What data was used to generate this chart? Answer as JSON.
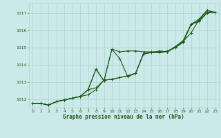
{
  "xlabel": "Graphe pression niveau de la mer (hPa)",
  "xlim": [
    -0.5,
    23.5
  ],
  "ylim": [
    1011.5,
    1017.6
  ],
  "yticks": [
    1012,
    1013,
    1014,
    1015,
    1016,
    1017
  ],
  "xticks": [
    0,
    1,
    2,
    3,
    4,
    5,
    6,
    7,
    8,
    9,
    10,
    11,
    12,
    13,
    14,
    15,
    16,
    17,
    18,
    19,
    20,
    21,
    22,
    23
  ],
  "bg_color": "#cce9e9",
  "grid_color": "#b0d0d0",
  "line_color": "#1a5c1a",
  "line1": [
    1011.75,
    1011.75,
    1011.65,
    1011.85,
    1011.95,
    1012.05,
    1012.15,
    1012.25,
    1012.55,
    1013.1,
    1013.15,
    1013.25,
    1013.35,
    1013.5,
    1014.65,
    1014.7,
    1014.7,
    1014.75,
    1015.0,
    1015.3,
    1016.35,
    1016.5,
    1017.0,
    1017.05
  ],
  "line2": [
    1011.75,
    1011.75,
    1011.65,
    1011.85,
    1011.95,
    1012.05,
    1012.15,
    1012.55,
    1012.65,
    1013.1,
    1013.15,
    1013.25,
    1013.35,
    1013.5,
    1014.65,
    1014.7,
    1014.7,
    1014.8,
    1015.0,
    1015.3,
    1016.35,
    1016.55,
    1017.05,
    1017.05
  ],
  "line3": [
    1011.75,
    1011.75,
    1011.65,
    1011.85,
    1011.95,
    1012.05,
    1012.15,
    1012.55,
    1013.75,
    1013.05,
    1014.9,
    1014.75,
    1014.8,
    1014.8,
    1014.75,
    1014.75,
    1014.75,
    1014.75,
    1015.05,
    1015.35,
    1015.85,
    1016.6,
    1017.15,
    1017.05
  ],
  "line4": [
    1011.75,
    1011.75,
    1011.65,
    1011.85,
    1011.95,
    1012.05,
    1012.15,
    1012.55,
    1013.75,
    1013.05,
    1014.9,
    1014.35,
    1013.3,
    1013.5,
    1014.65,
    1014.7,
    1014.8,
    1014.75,
    1015.05,
    1015.4,
    1016.35,
    1016.65,
    1017.15,
    1017.05
  ]
}
